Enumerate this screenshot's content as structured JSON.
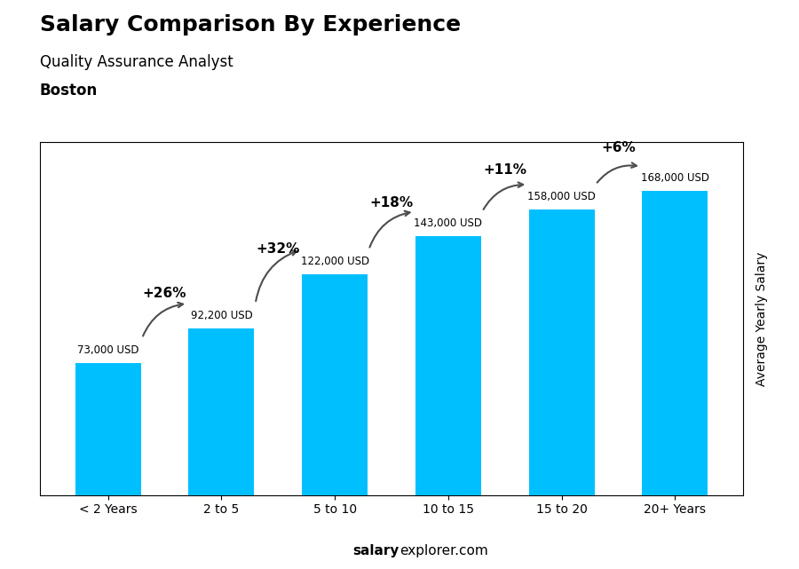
{
  "chart_data": {
    "type": "bar",
    "title": "Salary Comparison By Experience",
    "subtitle": "Quality Assurance Analyst",
    "annotations": [
      "Boston",
      "salary",
      "explorer.com"
    ],
    "categories": [
      "< 2 Years",
      "2 to 5",
      "5 to 10",
      "10 to 15",
      "15 to 20",
      "20+ Years"
    ],
    "values": [
      73000,
      92200,
      122000,
      143000,
      158000,
      168000
    ],
    "value_labels": [
      "73,000 USD",
      "92,200 USD",
      "122,000 USD",
      "143,000 USD",
      "158,000 USD",
      "168,000 USD"
    ],
    "data_labels": true,
    "change_labels": [
      "+26%",
      "+32%",
      "+18%",
      "+11%",
      "+6%"
    ],
    "ylabel": "Average Yearly Salary",
    "color": "#00BFFF",
    "ylim": [
      0,
      195000
    ],
    "tick_labels": "x",
    "grid": false
  }
}
